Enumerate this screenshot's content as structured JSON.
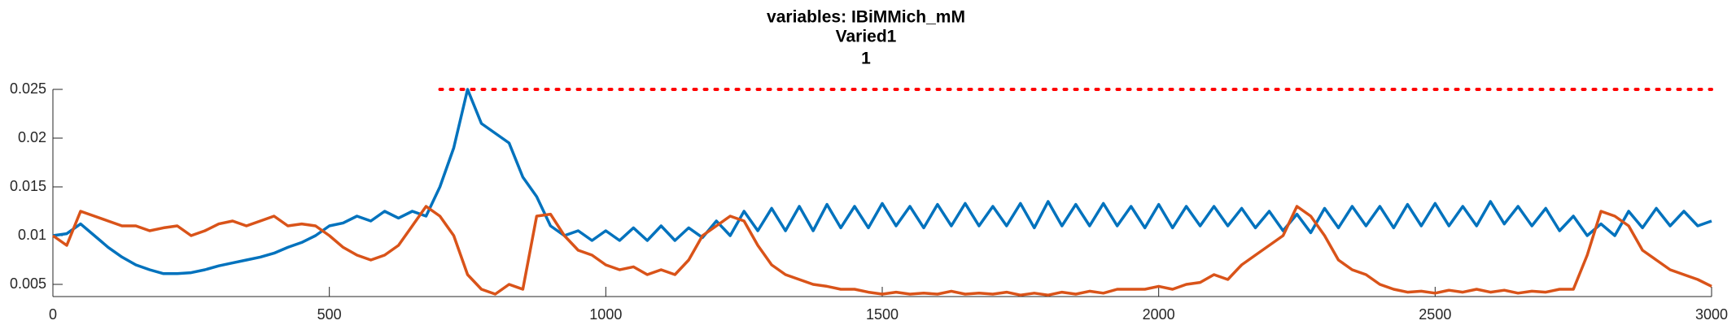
{
  "chart_data": {
    "type": "line",
    "title": "variables: IBiMMich_mM",
    "subtitle": "Varied1",
    "subtitle2": "1",
    "x": [
      0,
      25,
      50,
      75,
      100,
      125,
      150,
      175,
      200,
      225,
      250,
      275,
      300,
      325,
      350,
      375,
      400,
      425,
      450,
      475,
      500,
      525,
      550,
      575,
      600,
      625,
      650,
      675,
      700,
      725,
      750,
      775,
      800,
      825,
      850,
      875,
      900,
      925,
      950,
      975,
      1000,
      1025,
      1050,
      1075,
      1100,
      1125,
      1150,
      1175,
      1200,
      1225,
      1250,
      1275,
      1300,
      1325,
      1350,
      1375,
      1400,
      1425,
      1450,
      1475,
      1500,
      1525,
      1550,
      1575,
      1600,
      1625,
      1650,
      1675,
      1700,
      1725,
      1750,
      1775,
      1800,
      1825,
      1850,
      1875,
      1900,
      1925,
      1950,
      1975,
      2000,
      2025,
      2050,
      2075,
      2100,
      2125,
      2150,
      2175,
      2200,
      2225,
      2250,
      2275,
      2300,
      2325,
      2350,
      2375,
      2400,
      2425,
      2450,
      2475,
      2500,
      2525,
      2550,
      2575,
      2600,
      2625,
      2650,
      2675,
      2700,
      2725,
      2750,
      2775,
      2800,
      2825,
      2850,
      2875,
      2900,
      2925,
      2950,
      2975,
      3000
    ],
    "series": [
      {
        "color": "#0072bd",
        "values": [
          0.01,
          0.0102,
          0.0112,
          0.01,
          0.0088,
          0.0078,
          0.007,
          0.0065,
          0.0061,
          0.0061,
          0.0062,
          0.0065,
          0.0069,
          0.0072,
          0.0075,
          0.0078,
          0.0082,
          0.0088,
          0.0093,
          0.01,
          0.011,
          0.0113,
          0.012,
          0.0115,
          0.0125,
          0.0118,
          0.0125,
          0.012,
          0.015,
          0.019,
          0.025,
          0.0215,
          0.0205,
          0.0195,
          0.016,
          0.014,
          0.011,
          0.01,
          0.0105,
          0.0095,
          0.0105,
          0.0095,
          0.0108,
          0.0095,
          0.011,
          0.0095,
          0.0108,
          0.0098,
          0.0115,
          0.01,
          0.0125,
          0.0105,
          0.0128,
          0.0105,
          0.013,
          0.0105,
          0.0132,
          0.0108,
          0.013,
          0.0108,
          0.0133,
          0.011,
          0.013,
          0.0108,
          0.0132,
          0.011,
          0.0133,
          0.011,
          0.013,
          0.011,
          0.0133,
          0.0108,
          0.0135,
          0.011,
          0.0132,
          0.011,
          0.0133,
          0.011,
          0.013,
          0.0108,
          0.0132,
          0.0108,
          0.013,
          0.011,
          0.013,
          0.011,
          0.0128,
          0.0108,
          0.0125,
          0.0105,
          0.0122,
          0.0103,
          0.0128,
          0.0108,
          0.013,
          0.011,
          0.013,
          0.0108,
          0.0132,
          0.011,
          0.0133,
          0.011,
          0.013,
          0.011,
          0.0135,
          0.0112,
          0.013,
          0.011,
          0.0128,
          0.0105,
          0.012,
          0.01,
          0.0112,
          0.01,
          0.0125,
          0.0108,
          0.0128,
          0.011,
          0.0125,
          0.011,
          0.0115
        ]
      },
      {
        "color": "#d95319",
        "values": [
          0.01,
          0.009,
          0.0125,
          0.012,
          0.0115,
          0.011,
          0.011,
          0.0105,
          0.0108,
          0.011,
          0.01,
          0.0105,
          0.0112,
          0.0115,
          0.011,
          0.0115,
          0.012,
          0.011,
          0.0112,
          0.011,
          0.01,
          0.0088,
          0.008,
          0.0075,
          0.008,
          0.009,
          0.011,
          0.013,
          0.012,
          0.01,
          0.006,
          0.0045,
          0.004,
          0.005,
          0.0045,
          0.012,
          0.0122,
          0.01,
          0.0085,
          0.008,
          0.007,
          0.0065,
          0.0068,
          0.006,
          0.0065,
          0.006,
          0.0075,
          0.01,
          0.011,
          0.012,
          0.0115,
          0.009,
          0.007,
          0.006,
          0.0055,
          0.005,
          0.0048,
          0.0045,
          0.0045,
          0.0042,
          0.004,
          0.0042,
          0.004,
          0.0041,
          0.004,
          0.0043,
          0.004,
          0.0041,
          0.004,
          0.0042,
          0.0039,
          0.0041,
          0.0039,
          0.0042,
          0.004,
          0.0043,
          0.0041,
          0.0045,
          0.0045,
          0.0045,
          0.0048,
          0.0045,
          0.005,
          0.0052,
          0.006,
          0.0055,
          0.007,
          0.008,
          0.009,
          0.01,
          0.013,
          0.012,
          0.01,
          0.0075,
          0.0065,
          0.006,
          0.005,
          0.0045,
          0.0042,
          0.0043,
          0.0041,
          0.0044,
          0.0042,
          0.0045,
          0.0042,
          0.0044,
          0.0041,
          0.0043,
          0.0042,
          0.0045,
          0.0045,
          0.008,
          0.0125,
          0.012,
          0.011,
          0.0085,
          0.0075,
          0.0065,
          0.006,
          0.0055,
          0.0048
        ]
      }
    ],
    "reference_line": {
      "xrange": [
        700,
        3000
      ],
      "value": 0.025,
      "color": "#ff0000"
    },
    "xlim": [
      0,
      3000
    ],
    "xticks": [
      0,
      500,
      1000,
      1500,
      2000,
      2500,
      3000
    ],
    "ylim": [
      0.00375,
      0.0255
    ],
    "yticks": [
      0.005,
      0.01,
      0.015,
      0.02,
      0.025
    ]
  }
}
